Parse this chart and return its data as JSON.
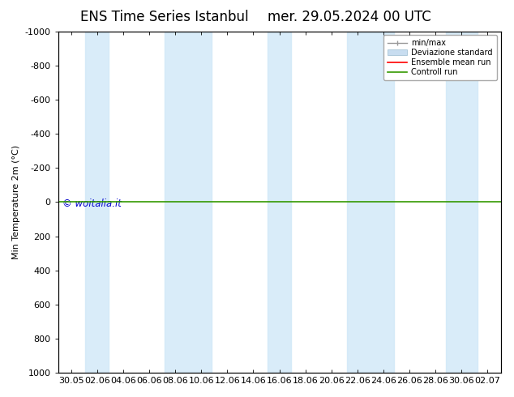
{
  "title_left": "ENS Time Series Istanbul",
  "title_right": "mer. 29.05.2024 00 UTC",
  "ylabel": "Min Temperature 2m (°C)",
  "ylim": [
    -1000,
    1000
  ],
  "yticks": [
    -1000,
    -800,
    -600,
    -400,
    -200,
    0,
    200,
    400,
    600,
    800,
    1000
  ],
  "ytick_labels": [
    "-1000",
    "-800",
    "-600",
    "-400",
    "-200",
    "0",
    "200",
    "400",
    "600",
    "800",
    "1000"
  ],
  "xtick_labels": [
    "30.05",
    "02.06",
    "04.06",
    "06.06",
    "08.06",
    "10.06",
    "12.06",
    "14.06",
    "16.06",
    "18.06",
    "20.06",
    "22.06",
    "24.06",
    "26.06",
    "28.06",
    "30.06",
    "02.07"
  ],
  "background_color": "#ffffff",
  "plot_bg_color": "#ffffff",
  "band_color": "#d0e8f8",
  "band_alpha": 0.8,
  "control_run_color": "#339900",
  "ensemble_mean_color": "#ff0000",
  "watermark": "© woitalia.it",
  "watermark_color": "#0000cc",
  "legend_items": [
    "min/max",
    "Deviazione standard",
    "Ensemble mean run",
    "Controll run"
  ],
  "legend_line_colors": [
    "#999999",
    "#bbccdd",
    "#ff0000",
    "#339900"
  ],
  "title_fontsize": 12,
  "axis_fontsize": 8,
  "tick_fontsize": 8,
  "band_positions": [
    1,
    4,
    8,
    11,
    15
  ],
  "band_widths": [
    0.9,
    1.8,
    0.9,
    1.8,
    1.2
  ]
}
